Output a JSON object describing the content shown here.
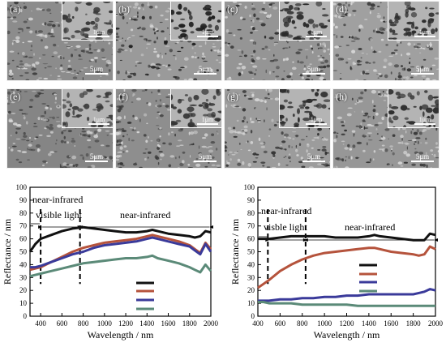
{
  "sem_panels": [
    {
      "letter": "(a)",
      "inset_scale": "1μm",
      "main_scale": "5μm",
      "base": "#8c8c8c",
      "pore": "#3a3a3a",
      "seed": 11
    },
    {
      "letter": "(b)",
      "inset_scale": "1μm",
      "main_scale": "5μm",
      "base": "#9a9a9a",
      "pore": "#1e1e1e",
      "seed": 23
    },
    {
      "letter": "(c)",
      "inset_scale": "1μm",
      "main_scale": "5μm",
      "base": "#959595",
      "pore": "#2a2a2a",
      "seed": 37
    },
    {
      "letter": "(d)",
      "inset_scale": "1μm",
      "main_scale": "5μm",
      "base": "#a0a0a0",
      "pore": "#2e2e2e",
      "seed": 41
    },
    {
      "letter": "(e)",
      "inset_scale": "1μm",
      "main_scale": "5μm",
      "base": "#858585",
      "pore": "#3c3c3c",
      "seed": 53
    },
    {
      "letter": "(f)",
      "inset_scale": "1μm",
      "main_scale": "5μm",
      "base": "#8e8e8e",
      "pore": "#353535",
      "seed": 67
    },
    {
      "letter": "(g)",
      "inset_scale": "1μm",
      "main_scale": "5μm",
      "base": "#9c9c9c",
      "pore": "#2c2c2c",
      "seed": 71
    },
    {
      "letter": "(h)",
      "inset_scale": "1μm",
      "main_scale": "5μm",
      "base": "#979797",
      "pore": "#303030",
      "seed": 83
    }
  ],
  "chart_data": [
    {
      "type": "line",
      "xlabel": "Wavelength / nm",
      "ylabel": "Reflectance / nm",
      "xlim": [
        300,
        2000
      ],
      "ylim": [
        0,
        100
      ],
      "xticks": [
        400,
        600,
        800,
        1000,
        1200,
        1400,
        1600,
        1800,
        2000
      ],
      "yticks": [
        0,
        10,
        20,
        30,
        40,
        50,
        60,
        70,
        80,
        90,
        100
      ],
      "dashed_lines_x": [
        400,
        770
      ],
      "annotations": {
        "near_infrared_top": "near-infrared",
        "visible": "visible light",
        "near_infrared_right": "near-infrared"
      },
      "legend_position": "center-right",
      "series": [
        {
          "color": "#111111",
          "points": [
            [
              300,
              50
            ],
            [
              350,
              56
            ],
            [
              400,
              60
            ],
            [
              500,
              63
            ],
            [
              600,
              66
            ],
            [
              700,
              68
            ],
            [
              800,
              69
            ],
            [
              900,
              68
            ],
            [
              1000,
              67
            ],
            [
              1100,
              66
            ],
            [
              1200,
              65
            ],
            [
              1300,
              65
            ],
            [
              1400,
              66
            ],
            [
              1450,
              67
            ],
            [
              1500,
              66
            ],
            [
              1600,
              64
            ],
            [
              1700,
              63
            ],
            [
              1800,
              62
            ],
            [
              1850,
              61
            ],
            [
              1900,
              62
            ],
            [
              1950,
              66
            ],
            [
              2000,
              65
            ]
          ]
        },
        {
          "color": "#b5533c",
          "points": [
            [
              300,
              36
            ],
            [
              350,
              37
            ],
            [
              400,
              38
            ],
            [
              500,
              42
            ],
            [
              600,
              46
            ],
            [
              700,
              50
            ],
            [
              800,
              53
            ],
            [
              900,
              55
            ],
            [
              1000,
              57
            ],
            [
              1100,
              58
            ],
            [
              1200,
              59
            ],
            [
              1300,
              60
            ],
            [
              1400,
              62
            ],
            [
              1450,
              63
            ],
            [
              1500,
              62
            ],
            [
              1600,
              60
            ],
            [
              1700,
              58
            ],
            [
              1800,
              55
            ],
            [
              1850,
              52
            ],
            [
              1900,
              49
            ],
            [
              1950,
              57
            ],
            [
              2000,
              52
            ]
          ]
        },
        {
          "color": "#3a3a9a",
          "points": [
            [
              300,
              38
            ],
            [
              350,
              38
            ],
            [
              400,
              39
            ],
            [
              500,
              42
            ],
            [
              600,
              45
            ],
            [
              700,
              48
            ],
            [
              800,
              50
            ],
            [
              900,
              53
            ],
            [
              1000,
              55
            ],
            [
              1100,
              56
            ],
            [
              1200,
              57
            ],
            [
              1300,
              58
            ],
            [
              1400,
              60
            ],
            [
              1450,
              61
            ],
            [
              1500,
              60
            ],
            [
              1600,
              58
            ],
            [
              1700,
              56
            ],
            [
              1800,
              54
            ],
            [
              1850,
              51
            ],
            [
              1900,
              48
            ],
            [
              1950,
              56
            ],
            [
              2000,
              50
            ]
          ]
        },
        {
          "color": "#5b8a78",
          "points": [
            [
              300,
              31
            ],
            [
              350,
              32
            ],
            [
              400,
              33
            ],
            [
              500,
              35
            ],
            [
              600,
              37
            ],
            [
              700,
              39
            ],
            [
              800,
              41
            ],
            [
              900,
              42
            ],
            [
              1000,
              43
            ],
            [
              1100,
              44
            ],
            [
              1200,
              45
            ],
            [
              1300,
              45
            ],
            [
              1400,
              46
            ],
            [
              1450,
              47
            ],
            [
              1500,
              45
            ],
            [
              1600,
              43
            ],
            [
              1700,
              41
            ],
            [
              1800,
              38
            ],
            [
              1850,
              36
            ],
            [
              1900,
              34
            ],
            [
              1950,
              40
            ],
            [
              2000,
              35
            ]
          ]
        }
      ]
    },
    {
      "type": "line",
      "xlabel": "Wavelength / nm",
      "ylabel": "Reflectance / nm",
      "xlim": [
        400,
        2000
      ],
      "ylim": [
        0,
        100
      ],
      "xticks": [
        400,
        600,
        800,
        1000,
        1200,
        1400,
        1600,
        1800,
        2000
      ],
      "yticks": [
        0,
        10,
        20,
        30,
        40,
        50,
        60,
        70,
        80,
        90,
        100
      ],
      "dashed_lines_x": [
        490,
        830
      ],
      "annotations": {
        "near_infrared_top": "near-infrared",
        "visible": "visble light",
        "near_infrared_right": "near-infrared"
      },
      "legend_position": "upper-right",
      "series": [
        {
          "color": "#111111",
          "points": [
            [
              400,
              60
            ],
            [
              450,
              60
            ],
            [
              500,
              60
            ],
            [
              600,
              61
            ],
            [
              700,
              62
            ],
            [
              800,
              62
            ],
            [
              900,
              62
            ],
            [
              1000,
              62
            ],
            [
              1100,
              61
            ],
            [
              1200,
              61
            ],
            [
              1300,
              61
            ],
            [
              1400,
              62
            ],
            [
              1450,
              63
            ],
            [
              1500,
              62
            ],
            [
              1600,
              61
            ],
            [
              1700,
              60
            ],
            [
              1800,
              59
            ],
            [
              1850,
              59
            ],
            [
              1900,
              59
            ],
            [
              1950,
              64
            ],
            [
              2000,
              63
            ]
          ]
        },
        {
          "color": "#b5533c",
          "points": [
            [
              400,
              22
            ],
            [
              450,
              25
            ],
            [
              500,
              28
            ],
            [
              600,
              35
            ],
            [
              700,
              40
            ],
            [
              800,
              44
            ],
            [
              900,
              47
            ],
            [
              1000,
              49
            ],
            [
              1100,
              50
            ],
            [
              1200,
              51
            ],
            [
              1300,
              52
            ],
            [
              1400,
              53
            ],
            [
              1450,
              53
            ],
            [
              1500,
              52
            ],
            [
              1600,
              50
            ],
            [
              1700,
              49
            ],
            [
              1800,
              48
            ],
            [
              1850,
              47
            ],
            [
              1900,
              48
            ],
            [
              1950,
              54
            ],
            [
              2000,
              52
            ]
          ]
        },
        {
          "color": "#3a3a9a",
          "points": [
            [
              400,
              12
            ],
            [
              450,
              12
            ],
            [
              500,
              12
            ],
            [
              600,
              13
            ],
            [
              700,
              13
            ],
            [
              800,
              14
            ],
            [
              900,
              14
            ],
            [
              1000,
              15
            ],
            [
              1100,
              15
            ],
            [
              1200,
              16
            ],
            [
              1300,
              16
            ],
            [
              1400,
              17
            ],
            [
              1450,
              17
            ],
            [
              1500,
              17
            ],
            [
              1600,
              17
            ],
            [
              1700,
              17
            ],
            [
              1800,
              17
            ],
            [
              1850,
              18
            ],
            [
              1900,
              19
            ],
            [
              1950,
              21
            ],
            [
              2000,
              20
            ]
          ]
        },
        {
          "color": "#5b8a78",
          "points": [
            [
              400,
              11
            ],
            [
              450,
              11
            ],
            [
              500,
              10
            ],
            [
              600,
              10
            ],
            [
              700,
              10
            ],
            [
              800,
              9
            ],
            [
              900,
              9
            ],
            [
              1000,
              9
            ],
            [
              1100,
              9
            ],
            [
              1200,
              9
            ],
            [
              1300,
              8
            ],
            [
              1400,
              8
            ],
            [
              1450,
              8
            ],
            [
              1500,
              8
            ],
            [
              1600,
              8
            ],
            [
              1700,
              8
            ],
            [
              1800,
              8
            ],
            [
              1850,
              8
            ],
            [
              1900,
              8
            ],
            [
              1950,
              8
            ],
            [
              2000,
              8
            ]
          ]
        }
      ]
    }
  ]
}
